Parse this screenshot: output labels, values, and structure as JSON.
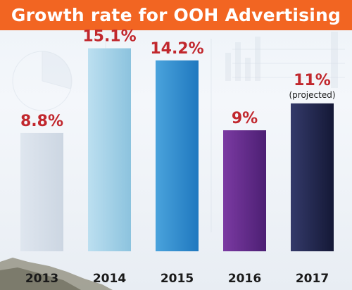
{
  "chart_data": {
    "type": "bar",
    "title": "Growth rate for OOH Advertising",
    "xlabel": "",
    "ylabel": "",
    "categories": [
      "2013",
      "2014",
      "2015",
      "2016",
      "2017"
    ],
    "values": [
      8.8,
      15.1,
      14.2,
      9,
      11
    ],
    "value_labels": [
      "8.8%",
      "15.1%",
      "14.2%",
      "9%",
      "11%"
    ],
    "annotations": [
      {
        "category": "2017",
        "text": "(projected)"
      }
    ],
    "ylim": [
      0,
      17
    ],
    "grid": false,
    "legend": "none"
  },
  "colors": {
    "title_banner": "#f26522",
    "value_text": "#c1272d",
    "bars": [
      [
        "#dfe6ef",
        "#ccd6e2"
      ],
      [
        "#bcdff0",
        "#8cc3de"
      ],
      [
        "#4aa3dc",
        "#1f78bf"
      ],
      [
        "#7b3aa2",
        "#4c1f73"
      ],
      [
        "#343a6a",
        "#141836"
      ]
    ]
  }
}
